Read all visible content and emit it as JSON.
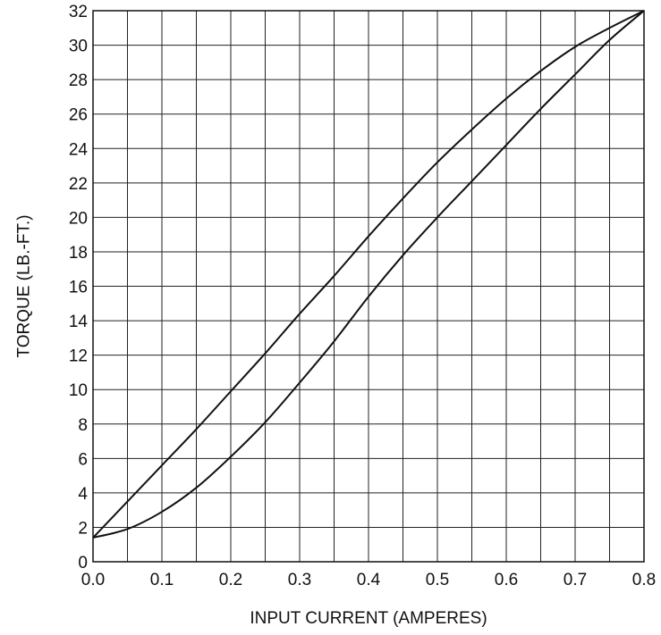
{
  "chart_data": {
    "type": "line",
    "title": "",
    "xlabel": "INPUT CURRENT  (AMPERES)",
    "ylabel": "TORQUE   (LB.-FT.)",
    "xlim": [
      0.0,
      0.8
    ],
    "ylim": [
      0,
      32
    ],
    "x_ticks": [
      "0.0",
      "0.1",
      "0.2",
      "0.3",
      "0.4",
      "0.5",
      "0.6",
      "0.7",
      "0.8"
    ],
    "y_ticks": [
      "0",
      "2",
      "4",
      "6",
      "8",
      "10",
      "12",
      "14",
      "16",
      "18",
      "20",
      "22",
      "24",
      "26",
      "28",
      "30",
      "32"
    ],
    "grid": true,
    "grid_x_step": 0.05,
    "grid_y_step": 2,
    "series": [
      {
        "x": [
          0.0,
          0.05,
          0.1,
          0.15,
          0.2,
          0.25,
          0.3,
          0.35,
          0.4,
          0.45,
          0.5,
          0.55,
          0.6,
          0.65,
          0.7,
          0.75,
          0.8
        ],
        "y": [
          1.4,
          3.5,
          5.6,
          7.7,
          9.9,
          12.1,
          14.4,
          16.6,
          18.9,
          21.1,
          23.2,
          25.1,
          26.9,
          28.5,
          29.9,
          31.0,
          32.0
        ]
      },
      {
        "x": [
          0.0,
          0.05,
          0.1,
          0.15,
          0.2,
          0.25,
          0.3,
          0.35,
          0.4,
          0.45,
          0.5,
          0.55,
          0.6,
          0.65,
          0.7,
          0.75,
          0.8
        ],
        "y": [
          1.4,
          1.9,
          2.9,
          4.3,
          6.1,
          8.1,
          10.4,
          12.8,
          15.4,
          17.8,
          20.0,
          22.1,
          24.2,
          26.3,
          28.3,
          30.3,
          32.0
        ]
      }
    ]
  }
}
